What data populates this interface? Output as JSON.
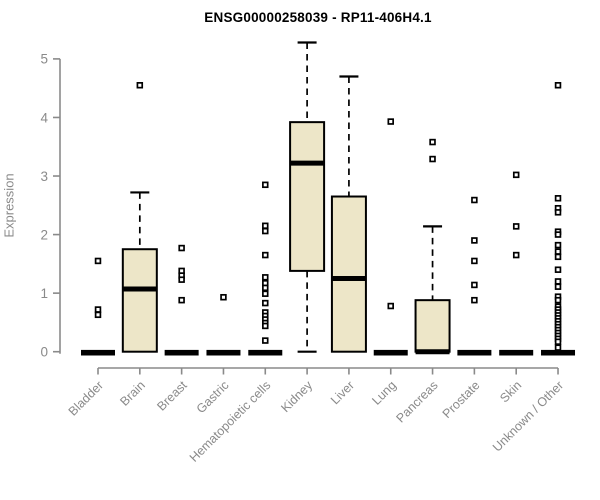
{
  "meta": {
    "background_color": "#ffffff",
    "axis_color": "#8a8a8a",
    "label_color": "#8a8a8a",
    "title_color": "#000000",
    "box_fill_color": "#EDE6C8",
    "box_border_color": "#000000"
  },
  "chart_data": {
    "type": "boxplot",
    "title": "ENSG00000258039 - RP11-406H4.1",
    "xlabel": "",
    "ylabel": "Expression",
    "ylim": [
      0,
      5.3
    ],
    "yticks": [
      0,
      1,
      2,
      3,
      4,
      5
    ],
    "grid": false,
    "legend": false,
    "categories": [
      "Bladder",
      "Brain",
      "Breast",
      "Gastric",
      "Hematopoietic cells",
      "Kidney",
      "Liver",
      "Lung",
      "Pancreas",
      "Prostate",
      "Skin",
      "Unknown / Other"
    ],
    "series": [
      {
        "category": "Bladder",
        "q1": 0,
        "median": 0,
        "q3": 0,
        "whisker_low": 0,
        "whisker_high": 0,
        "outliers": [
          1.55,
          0.72,
          0.63
        ]
      },
      {
        "category": "Brain",
        "q1": 0,
        "median": 1.07,
        "q3": 1.75,
        "whisker_low": 0,
        "whisker_high": 2.72,
        "outliers": [
          4.55
        ]
      },
      {
        "category": "Breast",
        "q1": 0,
        "median": 0,
        "q3": 0,
        "whisker_low": 0,
        "whisker_high": 0,
        "outliers": [
          1.77,
          1.38,
          1.3,
          1.23,
          0.88
        ]
      },
      {
        "category": "Gastric",
        "q1": 0,
        "median": 0,
        "q3": 0,
        "whisker_low": 0,
        "whisker_high": 0,
        "outliers": [
          0.93
        ]
      },
      {
        "category": "Hematopoietic cells",
        "q1": 0,
        "median": 0,
        "q3": 0,
        "whisker_low": 0,
        "whisker_high": 0,
        "outliers": [
          2.85,
          2.15,
          2.06,
          1.65,
          1.27,
          1.17,
          1.09,
          0.99,
          0.83,
          0.67,
          0.61,
          0.55,
          0.49,
          0.44,
          0.19
        ]
      },
      {
        "category": "Kidney",
        "q1": 1.38,
        "median": 3.22,
        "q3": 3.92,
        "whisker_low": 0,
        "whisker_high": 5.28,
        "outliers": []
      },
      {
        "category": "Liver",
        "q1": 0,
        "median": 1.25,
        "q3": 2.65,
        "whisker_low": 0,
        "whisker_high": 4.7,
        "outliers": []
      },
      {
        "category": "Lung",
        "q1": 0,
        "median": 0,
        "q3": 0,
        "whisker_low": 0,
        "whisker_high": 0,
        "outliers": [
          3.93,
          0.78
        ]
      },
      {
        "category": "Pancreas",
        "q1": 0,
        "median": 0,
        "q3": 0.88,
        "whisker_low": 0,
        "whisker_high": 2.14,
        "outliers": [
          3.58,
          3.29
        ]
      },
      {
        "category": "Prostate",
        "q1": 0,
        "median": 0,
        "q3": 0,
        "whisker_low": 0,
        "whisker_high": 0,
        "outliers": [
          2.59,
          1.9,
          1.55,
          1.14,
          0.88
        ]
      },
      {
        "category": "Skin",
        "q1": 0,
        "median": 0,
        "q3": 0,
        "whisker_low": 0,
        "whisker_high": 0,
        "outliers": [
          3.02,
          2.14,
          1.65
        ]
      },
      {
        "category": "Unknown / Other",
        "q1": 0,
        "median": 0,
        "q3": 0,
        "whisker_low": 0,
        "whisker_high": 0,
        "outliers": [
          4.55,
          2.62,
          2.45,
          2.38,
          2.05,
          2.0,
          1.82,
          1.71,
          1.62,
          1.4,
          1.2,
          1.11,
          0.94,
          0.88,
          0.77,
          0.72,
          0.67,
          0.62,
          0.57,
          0.52,
          0.47,
          0.42,
          0.37,
          0.32,
          0.27,
          0.22,
          0.17,
          0.07
        ]
      }
    ]
  }
}
